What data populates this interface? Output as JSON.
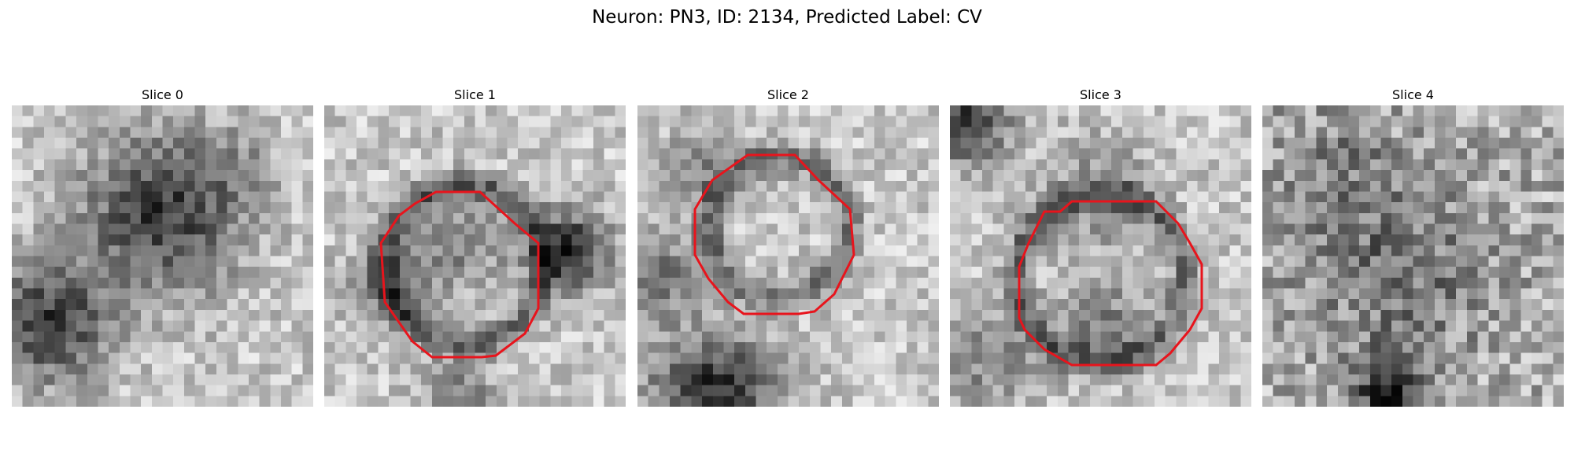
{
  "figure": {
    "title": "Neuron: PN3, ID: 2134, Predicted Label: CV"
  },
  "panels": [
    {
      "title": "Slice 0",
      "has_contour": false
    },
    {
      "title": "Slice 1",
      "has_contour": true
    },
    {
      "title": "Slice 2",
      "has_contour": true
    },
    {
      "title": "Slice 3",
      "has_contour": true
    },
    {
      "title": "Slice 4",
      "has_contour": false
    }
  ],
  "style": {
    "contour_color": "#e8141c"
  }
}
